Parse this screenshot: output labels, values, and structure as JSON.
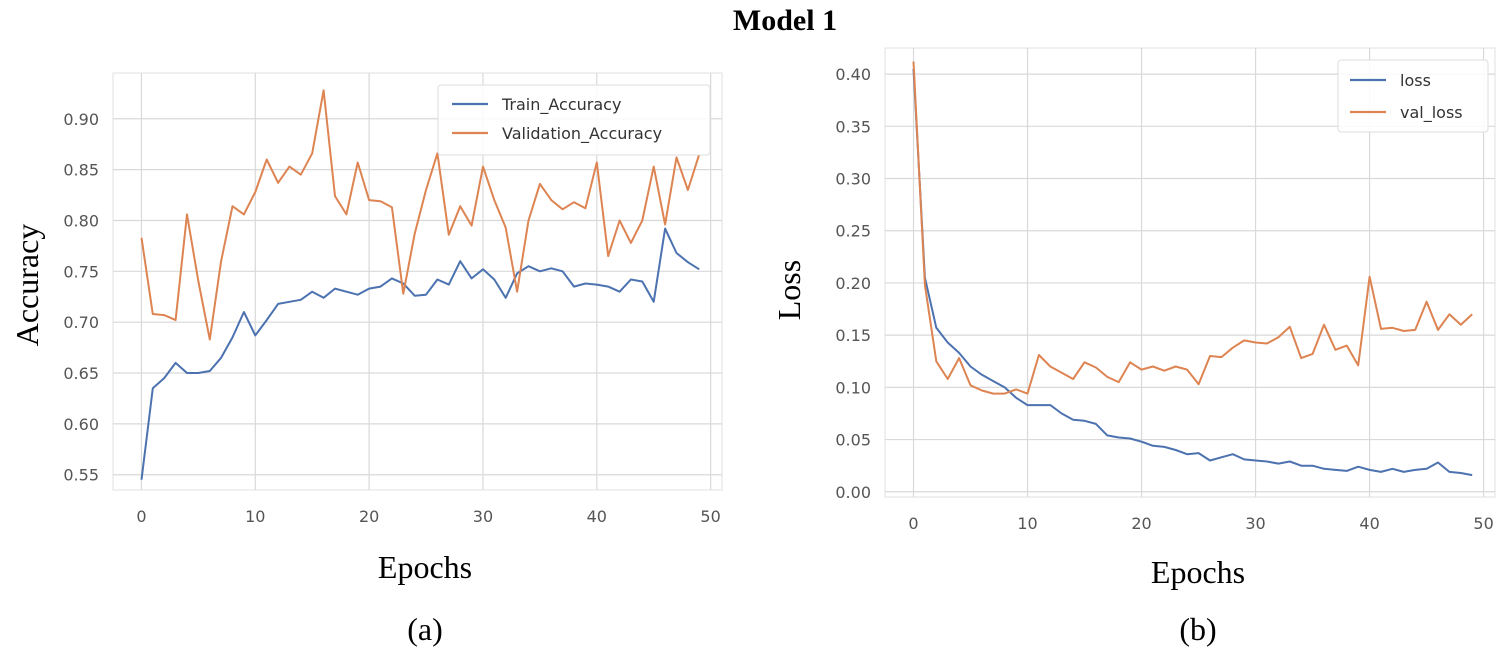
{
  "figure": {
    "title": "Model 1",
    "colors": {
      "train": "#4c72b0",
      "validation": "#dd8452"
    }
  },
  "chart_data": [
    {
      "type": "line",
      "panel_label": "(a)",
      "xlabel": "Epochs",
      "ylabel": "Accuracy",
      "xlim": [
        -2.5,
        51
      ],
      "ylim": [
        0.535,
        0.945
      ],
      "xticks": [
        0,
        10,
        20,
        30,
        40,
        50
      ],
      "yticks": [
        0.55,
        0.6,
        0.65,
        0.7,
        0.75,
        0.8,
        0.85,
        0.9
      ],
      "ytick_labels": [
        "0.55",
        "0.60",
        "0.65",
        "0.70",
        "0.75",
        "0.80",
        "0.85",
        "0.90"
      ],
      "xtick_labels": [
        "0",
        "10",
        "20",
        "30",
        "40",
        "50"
      ],
      "grid": true,
      "legend_position": "top-right",
      "series": [
        {
          "name": "Train_Accuracy",
          "color": "#4c72b0",
          "values": [
            0.545,
            0.635,
            0.645,
            0.66,
            0.65,
            0.65,
            0.652,
            0.665,
            0.685,
            0.71,
            0.687,
            0.702,
            0.718,
            0.72,
            0.722,
            0.73,
            0.724,
            0.733,
            0.73,
            0.727,
            0.733,
            0.735,
            0.743,
            0.738,
            0.726,
            0.727,
            0.742,
            0.737,
            0.76,
            0.743,
            0.752,
            0.742,
            0.724,
            0.748,
            0.755,
            0.75,
            0.753,
            0.75,
            0.735,
            0.738,
            0.737,
            0.735,
            0.73,
            0.742,
            0.74,
            0.72,
            0.792,
            0.768,
            0.759,
            0.752
          ]
        },
        {
          "name": "Validation_Accuracy",
          "color": "#dd8452",
          "values": [
            0.783,
            0.708,
            0.707,
            0.702,
            0.806,
            0.74,
            0.683,
            0.76,
            0.814,
            0.806,
            0.828,
            0.86,
            0.837,
            0.853,
            0.845,
            0.866,
            0.928,
            0.824,
            0.806,
            0.857,
            0.82,
            0.819,
            0.813,
            0.728,
            0.787,
            0.83,
            0.866,
            0.786,
            0.814,
            0.795,
            0.853,
            0.82,
            0.793,
            0.73,
            0.8,
            0.836,
            0.82,
            0.811,
            0.818,
            0.812,
            0.857,
            0.765,
            0.8,
            0.778,
            0.8,
            0.853,
            0.796,
            0.862,
            0.83,
            0.865
          ]
        }
      ]
    },
    {
      "type": "line",
      "panel_label": "(b)",
      "xlabel": "Epochs",
      "ylabel": "Loss",
      "xlim": [
        -2.5,
        51
      ],
      "ylim": [
        -0.005,
        0.425
      ],
      "xticks": [
        0,
        10,
        20,
        30,
        40,
        50
      ],
      "yticks": [
        0.0,
        0.05,
        0.1,
        0.15,
        0.2,
        0.25,
        0.3,
        0.35,
        0.4
      ],
      "ytick_labels": [
        "0.00",
        "0.05",
        "0.10",
        "0.15",
        "0.20",
        "0.25",
        "0.30",
        "0.35",
        "0.40"
      ],
      "xtick_labels": [
        "0",
        "10",
        "20",
        "30",
        "40",
        "50"
      ],
      "grid": true,
      "legend_position": "top-right",
      "series": [
        {
          "name": "loss",
          "color": "#4c72b0",
          "values": [
            0.405,
            0.205,
            0.157,
            0.143,
            0.133,
            0.12,
            0.112,
            0.106,
            0.1,
            0.09,
            0.083,
            0.083,
            0.083,
            0.075,
            0.069,
            0.068,
            0.065,
            0.054,
            0.052,
            0.051,
            0.048,
            0.044,
            0.043,
            0.04,
            0.036,
            0.037,
            0.03,
            0.033,
            0.036,
            0.031,
            0.03,
            0.029,
            0.027,
            0.029,
            0.025,
            0.025,
            0.022,
            0.021,
            0.02,
            0.024,
            0.021,
            0.019,
            0.022,
            0.019,
            0.021,
            0.022,
            0.028,
            0.019,
            0.018,
            0.016
          ]
        },
        {
          "name": "val_loss",
          "color": "#dd8452",
          "values": [
            0.412,
            0.198,
            0.125,
            0.108,
            0.128,
            0.102,
            0.097,
            0.094,
            0.094,
            0.098,
            0.094,
            0.131,
            0.12,
            0.114,
            0.108,
            0.124,
            0.119,
            0.11,
            0.105,
            0.124,
            0.117,
            0.12,
            0.116,
            0.12,
            0.117,
            0.103,
            0.13,
            0.129,
            0.138,
            0.145,
            0.143,
            0.142,
            0.148,
            0.158,
            0.128,
            0.132,
            0.16,
            0.136,
            0.14,
            0.121,
            0.206,
            0.156,
            0.157,
            0.154,
            0.155,
            0.182,
            0.155,
            0.17,
            0.16,
            0.17
          ]
        }
      ]
    }
  ]
}
